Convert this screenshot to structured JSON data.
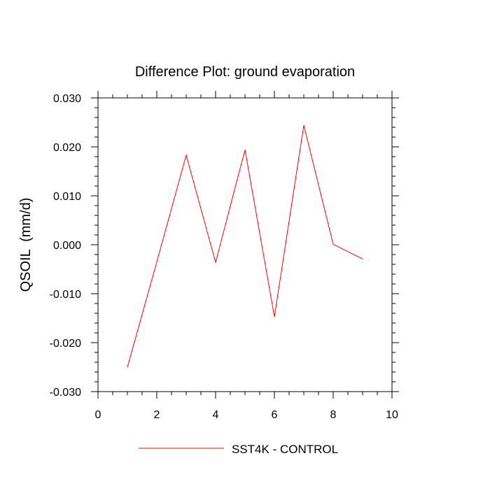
{
  "chart_data": {
    "type": "line",
    "title": "Difference Plot: ground evaporation",
    "xlabel": "",
    "ylabel": "QSOIL  (mm/d)",
    "xlim": [
      0,
      10
    ],
    "ylim": [
      -0.03,
      0.03
    ],
    "x_ticks": [
      0,
      2,
      4,
      6,
      8,
      10
    ],
    "x_tick_labels": [
      "0",
      "2",
      "4",
      "6",
      "8",
      "10"
    ],
    "y_ticks": [
      -0.03,
      -0.02,
      -0.01,
      0.0,
      0.01,
      0.02,
      0.03
    ],
    "y_tick_labels": [
      "-0.030",
      "-0.020",
      "-0.010",
      "0.000",
      "0.010",
      "0.020",
      "0.030"
    ],
    "grid": false,
    "legend_position": "bottom",
    "series": [
      {
        "name": "SST4K - CONTROL",
        "color": "#ff0000",
        "x": [
          1,
          2,
          3,
          4,
          5,
          6,
          7,
          8,
          9
        ],
        "y": [
          -0.025,
          -0.0035,
          0.0183,
          -0.0036,
          0.0194,
          -0.0147,
          0.0244,
          0.0001,
          -0.0029
        ]
      }
    ]
  }
}
